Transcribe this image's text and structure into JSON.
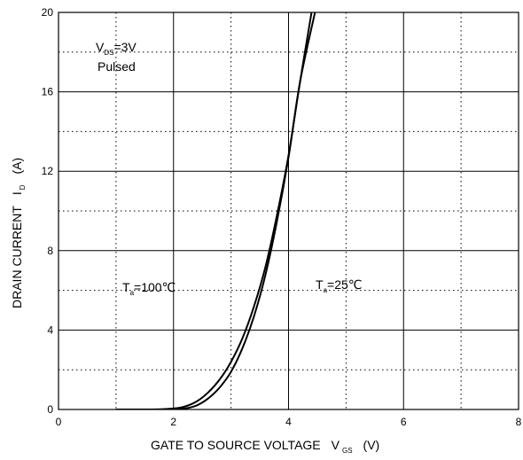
{
  "chart_data": {
    "type": "line",
    "xlabel": "GATE TO SOURCE VOLTAGE",
    "xlabel_sym": "V",
    "xlabel_sub": "GS",
    "xlabel_unit": "(V)",
    "ylabel": "DRAIN CURRENT",
    "ylabel_sym": "I",
    "ylabel_sub": "D",
    "ylabel_unit": "(A)",
    "xlim": [
      0,
      8
    ],
    "ylim": [
      0,
      20
    ],
    "x_ticks": [
      "0",
      "2",
      "4",
      "6",
      "8"
    ],
    "y_ticks": [
      "0",
      "4",
      "8",
      "12",
      "16",
      "20"
    ],
    "grid": true,
    "annotations": {
      "vds": {
        "sym": "V",
        "sub": "DS",
        "rest": "=3V"
      },
      "pulsed": "Pulsed",
      "t100": {
        "sym": "T",
        "sub": "a",
        "rest": "=100℃"
      },
      "t25": {
        "sym": "T",
        "sub": "a",
        "rest": "=25℃"
      }
    },
    "series": [
      {
        "name": "Ta=100℃",
        "x": [
          1.0,
          1.6,
          2.0,
          2.2,
          2.4,
          2.6,
          2.8,
          3.0,
          3.2,
          3.4,
          3.6,
          3.8,
          4.0,
          4.2,
          4.4
        ],
        "y": [
          0,
          0,
          0.05,
          0.15,
          0.4,
          0.85,
          1.5,
          2.4,
          3.6,
          5.2,
          7.2,
          9.8,
          12.8,
          16.5,
          20.0
        ]
      },
      {
        "name": "Ta=25℃",
        "x": [
          1.0,
          1.6,
          2.0,
          2.2,
          2.4,
          2.6,
          2.8,
          3.0,
          3.2,
          3.4,
          3.6,
          3.8,
          4.0,
          4.2,
          4.46
        ],
        "y": [
          0,
          0,
          0,
          0.05,
          0.2,
          0.55,
          1.1,
          1.9,
          3.1,
          4.7,
          6.8,
          9.5,
          12.7,
          16.5,
          20.0
        ]
      }
    ],
    "colors": {
      "curve": "#000000",
      "axis": "#000000",
      "minor_grid": "#000000"
    }
  }
}
